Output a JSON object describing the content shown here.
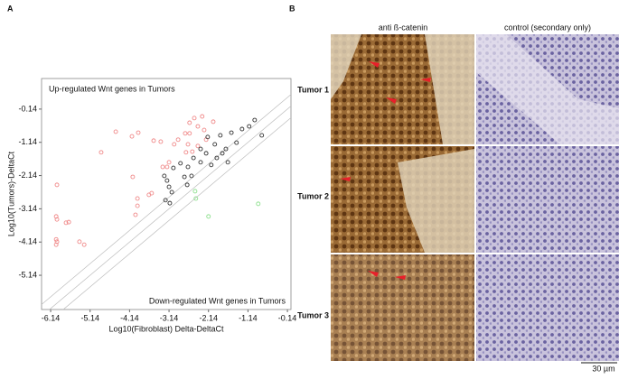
{
  "chart_data": {
    "type": "scatter",
    "panel_label": "A",
    "xlabel": "Log10(Fibroblast) Delta-DeltaCt",
    "ylabel": "Log10(Tumors)-DeltaCt",
    "annotations": [
      "Up-regulated Wnt genes in Tumors",
      "Down-regulated Wnt genes in Tumors"
    ],
    "xlim": [
      -6.37,
      -0.05
    ],
    "ylim": [
      -6.17,
      0.78
    ],
    "xticks": [
      -6.14,
      -5.14,
      -4.14,
      -3.14,
      -2.14,
      -1.14,
      -0.14
    ],
    "yticks": [
      -0.14,
      -1.14,
      -2.14,
      -3.14,
      -4.14,
      -5.14
    ],
    "series": [
      {
        "color": "#f08a8a",
        "x": [
          -5.98,
          -6.0,
          -5.98,
          -6.0,
          -5.98,
          -6.0,
          -5.75,
          -5.68,
          -5.41,
          -5.29,
          -4.86,
          -4.49,
          -4.08,
          -3.92,
          -3.53,
          -3.35,
          -4.06,
          -3.94,
          -3.99,
          -3.94,
          -3.19,
          -3.14,
          -3.01,
          -2.91,
          -2.73,
          -2.66,
          -2.62,
          -2.41,
          -2.5,
          -2.3,
          -2.25,
          -2.02,
          -3.65,
          -3.58,
          -3.3,
          -2.71,
          -2.55,
          -2.41,
          -2.2,
          -2.62
        ],
        "values": [
          -2.42,
          -3.37,
          -3.46,
          -4.06,
          -4.13,
          -4.22,
          -3.56,
          -3.54,
          -4.13,
          -4.22,
          -1.44,
          -0.82,
          -0.96,
          -0.85,
          -1.09,
          -1.12,
          -2.18,
          -3.05,
          -3.32,
          -2.83,
          -1.88,
          -1.74,
          -1.2,
          -1.06,
          -0.87,
          -1.2,
          -0.55,
          -0.66,
          -0.41,
          -0.36,
          -0.77,
          -0.52,
          -2.72,
          -2.67,
          -1.88,
          -1.44,
          -1.42,
          -1.25,
          -1.06,
          -0.87
        ]
      },
      {
        "color": "#333333",
        "x": [
          -3.26,
          -3.19,
          -3.14,
          -3.07,
          -3.23,
          -3.12,
          -3.03,
          -2.85,
          -2.66,
          -2.75,
          -2.57,
          -2.52,
          -2.34,
          -2.2,
          -2.16,
          -1.98,
          -1.84,
          -1.79,
          -1.7,
          -1.56,
          -1.43,
          -1.29,
          -1.11,
          -0.97,
          -0.79,
          -2.34,
          -2.07,
          -1.93,
          -1.65,
          -2.68
        ],
        "values": [
          -2.15,
          -2.29,
          -2.48,
          -2.64,
          -2.88,
          -2.97,
          -1.91,
          -1.77,
          -1.88,
          -2.18,
          -2.15,
          -1.61,
          -1.74,
          -1.47,
          -0.98,
          -1.2,
          -0.93,
          -1.47,
          -1.34,
          -0.85,
          -1.15,
          -0.74,
          -0.66,
          -0.47,
          -0.93,
          -1.34,
          -1.82,
          -1.61,
          -1.74,
          -2.42
        ]
      },
      {
        "color": "#8fe08f",
        "x": [
          -2.48,
          -2.46,
          -2.14,
          -0.88
        ],
        "values": [
          -2.61,
          -2.83,
          -3.37,
          -2.99
        ]
      }
    ]
  },
  "panel_b": {
    "label": "B",
    "columns": [
      "anti ß-catenin",
      "control (secondary only)"
    ],
    "rows": [
      "Tumor 1",
      "Tumor 2",
      "Tumor 3"
    ],
    "scale_bar": "30 µm"
  }
}
